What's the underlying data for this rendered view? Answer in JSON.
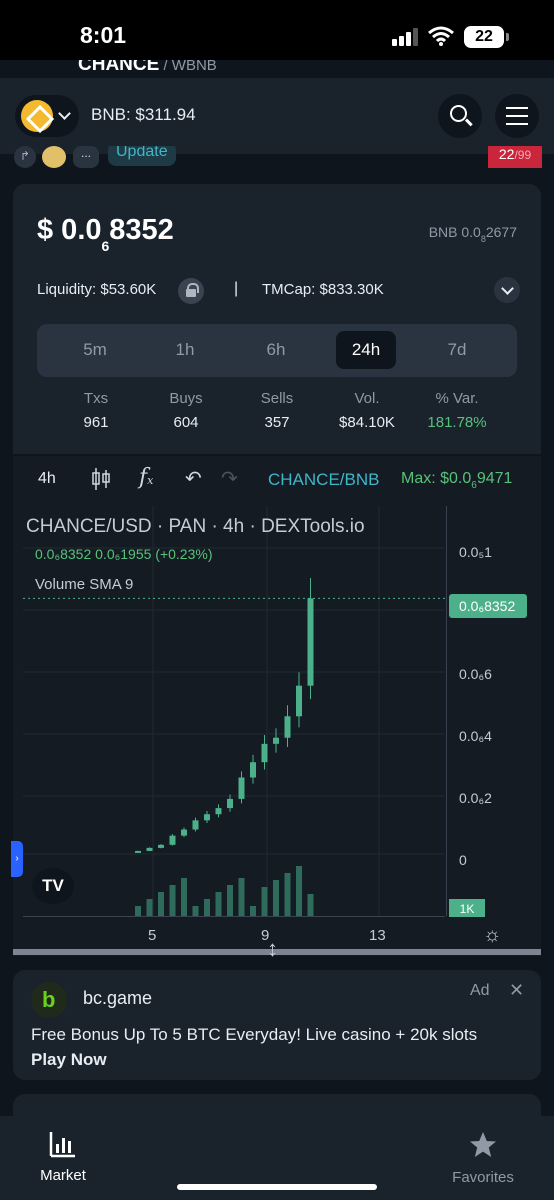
{
  "status_bar": {
    "time": "8:01",
    "battery": "22"
  },
  "top_strip": {
    "title": "CHANCE",
    "subtitle": " / WBNB"
  },
  "header": {
    "bnb_price": "BNB: $311.94"
  },
  "sub_strip": {
    "update_label": "Update",
    "more_label": "...",
    "score": "22",
    "score_total": "/99"
  },
  "price_card": {
    "price_prefix": "$ 0.0",
    "price_sub": "6",
    "price_rest": "8352",
    "bnb_prefix": "BNB 0.0",
    "bnb_sub": "8",
    "bnb_rest": "2677",
    "liquidity_label": "Liquidity:",
    "liquidity_value": "$53.60K",
    "separator": "|",
    "tmcap_label": "TMCap:",
    "tmcap_value": "$833.30K",
    "tabs": [
      "5m",
      "1h",
      "6h",
      "24h",
      "7d"
    ],
    "active_tab": "24h",
    "stats": [
      {
        "label": "Txs",
        "value": "961"
      },
      {
        "label": "Buys",
        "value": "604"
      },
      {
        "label": "Sells",
        "value": "357"
      },
      {
        "label": "Vol.",
        "value": "$84.10K"
      },
      {
        "label": "% Var.",
        "value": "181.78%"
      }
    ]
  },
  "chart": {
    "toolbar": {
      "interval": "4h",
      "pair": "CHANCE/BNB",
      "max_prefix": "Max: $0.0",
      "max_sub": "6",
      "max_rest": "9471"
    },
    "title": "CHANCE/USD · PAN · 4h · DEXTools.io",
    "ohlc_line": "0.0₆8352  0.0₆1955 (+0.23%)",
    "volume_label": "Volume SMA 9",
    "tv_logo": "TV",
    "y_labels": [
      "0.0₅1",
      "0.0₆6",
      "0.0₆4",
      "0.0₆2",
      "0"
    ],
    "price_tag": "0.0₆8352",
    "vol_tag": "1K",
    "x_labels": [
      "5",
      "9",
      "13"
    ],
    "colors": {
      "up": "#4cb08a",
      "down": "#e0414f",
      "volume_up": "#2f6b5a",
      "volume_down": "#7a2f38"
    }
  },
  "chart_data": {
    "type": "candlestick",
    "title": "CHANCE/USD · PAN · 4h · DEXTools.io",
    "xlabel": "",
    "ylabel": "",
    "x_ticks": [
      "5",
      "9",
      "13"
    ],
    "ylim": [
      0,
      1e-06
    ],
    "last_close": 8.352e-07,
    "close_series": [
      1e-08,
      2e-08,
      3e-08,
      6e-08,
      8e-08,
      1.1e-07,
      1.3e-07,
      1.5e-07,
      1.8e-07,
      2.5e-07,
      3e-07,
      3.6e-07,
      3.8e-07,
      4.5e-07,
      5.5e-07,
      8.352e-07
    ]
  },
  "ad": {
    "brand": "bc.game",
    "label": "Ad",
    "close": "✕",
    "text": "Free Bonus Up To 5 BTC Everyday! Live casino + 20k slots",
    "cta": "Play Now"
  },
  "nav": {
    "market": "Market",
    "favorites": "Favorites"
  }
}
